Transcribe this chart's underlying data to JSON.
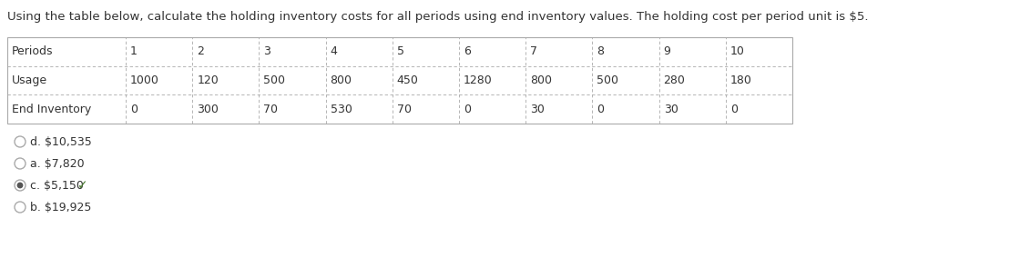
{
  "title": "Using the table below, calculate the holding inventory costs for all periods using end inventory values. The holding cost per period unit is $5.",
  "table_headers": [
    "Periods",
    "1",
    "2",
    "3",
    "4",
    "5",
    "6",
    "7",
    "8",
    "9",
    "10"
  ],
  "row_usage_label": "Usage",
  "row_usage_values": [
    "1000",
    "120",
    "500",
    "800",
    "450",
    "1280",
    "800",
    "500",
    "280",
    "180"
  ],
  "row_end_label": "End Inventory",
  "row_end_values": [
    "0",
    "300",
    "70",
    "530",
    "70",
    "0",
    "30",
    "0",
    "30",
    "0"
  ],
  "options": [
    {
      "label": "d. $10,535",
      "selected": false
    },
    {
      "label": "a. $7,820",
      "selected": false
    },
    {
      "label": "c. $5,150",
      "selected": true
    },
    {
      "label": "b. $19,925",
      "selected": false
    }
  ],
  "checkmark": "✓",
  "bg_color": "#ffffff",
  "text_color": "#333333",
  "table_border_color": "#aaaaaa",
  "title_fontsize": 9.5,
  "table_fontsize": 9.0,
  "option_fontsize": 9.0,
  "selected_circle_color": "#4a7c2f",
  "selected_dot_color": "#555555",
  "unselected_circle_color": "#aaaaaa"
}
